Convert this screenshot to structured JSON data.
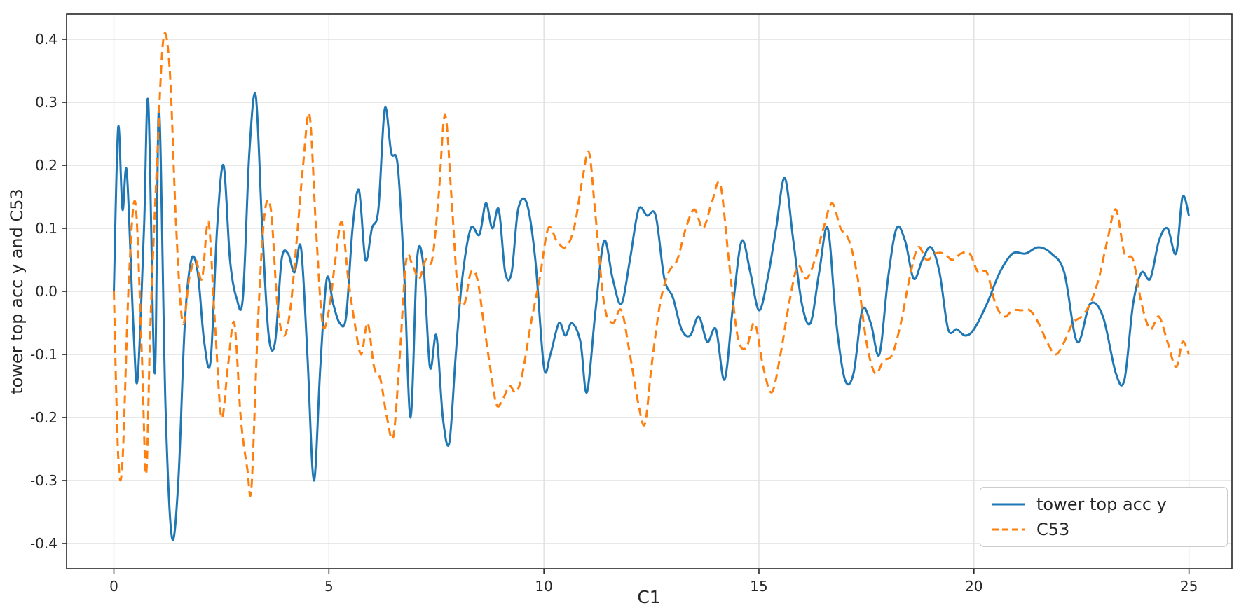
{
  "chart_data": {
    "type": "line",
    "title": "",
    "xlabel": "C1",
    "ylabel": "tower top acc y and C53",
    "xlim": [
      -1.1,
      26.0
    ],
    "ylim": [
      -0.44,
      0.44
    ],
    "x_ticks": [
      0,
      5,
      10,
      15,
      20,
      25
    ],
    "x_tick_labels": [
      "0",
      "5",
      "10",
      "15",
      "20",
      "25"
    ],
    "y_ticks": [
      -0.4,
      -0.3,
      -0.2,
      -0.1,
      0.0,
      0.1,
      0.2,
      0.3,
      0.4
    ],
    "y_tick_labels": [
      "-0.4",
      "-0.3",
      "-0.2",
      "-0.1",
      "0.0",
      "0.1",
      "0.2",
      "0.3",
      "0.4"
    ],
    "grid": true,
    "legend_position": "lower right",
    "series": [
      {
        "name": "tower top acc y",
        "color": "#1f77b4",
        "style": "solid",
        "x": [
          0,
          0.1,
          0.2,
          0.3,
          0.45,
          0.55,
          0.7,
          0.8,
          0.95,
          1.05,
          1.2,
          1.35,
          1.5,
          1.65,
          1.8,
          1.95,
          2.1,
          2.25,
          2.4,
          2.55,
          2.7,
          2.85,
          3.0,
          3.15,
          3.3,
          3.45,
          3.6,
          3.75,
          3.9,
          4.05,
          4.2,
          4.35,
          4.5,
          4.65,
          4.8,
          4.95,
          5.1,
          5.25,
          5.4,
          5.55,
          5.7,
          5.85,
          6.0,
          6.15,
          6.3,
          6.45,
          6.6,
          6.75,
          6.9,
          7.05,
          7.2,
          7.35,
          7.5,
          7.65,
          7.8,
          7.95,
          8.1,
          8.3,
          8.5,
          8.65,
          8.8,
          8.95,
          9.1,
          9.25,
          9.4,
          9.6,
          9.8,
          10.0,
          10.15,
          10.35,
          10.5,
          10.65,
          10.85,
          11.0,
          11.2,
          11.4,
          11.6,
          11.8,
          12.0,
          12.2,
          12.4,
          12.6,
          12.8,
          13.0,
          13.2,
          13.4,
          13.6,
          13.8,
          14.0,
          14.2,
          14.4,
          14.6,
          14.8,
          15.0,
          15.2,
          15.4,
          15.6,
          15.8,
          16.0,
          16.2,
          16.4,
          16.6,
          16.8,
          17.0,
          17.2,
          17.4,
          17.6,
          17.8,
          18.0,
          18.2,
          18.4,
          18.6,
          18.8,
          19.0,
          19.2,
          19.4,
          19.6,
          19.8,
          20.0,
          20.3,
          20.6,
          20.9,
          21.2,
          21.5,
          21.8,
          22.1,
          22.4,
          22.7,
          23.0,
          23.3,
          23.5,
          23.7,
          23.9,
          24.1,
          24.3,
          24.5,
          24.7,
          24.85,
          25.0
        ],
        "y": [
          0.0,
          0.26,
          0.13,
          0.19,
          -0.05,
          -0.14,
          0.1,
          0.3,
          -0.13,
          0.29,
          -0.18,
          -0.39,
          -0.3,
          -0.05,
          0.05,
          0.03,
          -0.08,
          -0.11,
          0.1,
          0.2,
          0.05,
          -0.01,
          -0.01,
          0.22,
          0.31,
          0.1,
          -0.07,
          -0.08,
          0.05,
          0.06,
          0.03,
          0.07,
          -0.1,
          -0.3,
          -0.12,
          0.02,
          -0.02,
          -0.05,
          -0.04,
          0.1,
          0.16,
          0.05,
          0.1,
          0.13,
          0.29,
          0.22,
          0.2,
          0.03,
          -0.2,
          0.05,
          0.04,
          -0.12,
          -0.07,
          -0.2,
          -0.24,
          -0.1,
          0.02,
          0.1,
          0.09,
          0.14,
          0.1,
          0.13,
          0.03,
          0.03,
          0.13,
          0.14,
          0.05,
          -0.12,
          -0.1,
          -0.05,
          -0.07,
          -0.05,
          -0.08,
          -0.16,
          -0.03,
          0.08,
          0.02,
          -0.02,
          0.05,
          0.13,
          0.12,
          0.12,
          0.02,
          -0.01,
          -0.06,
          -0.07,
          -0.04,
          -0.08,
          -0.06,
          -0.14,
          -0.02,
          0.08,
          0.03,
          -0.03,
          0.02,
          0.1,
          0.18,
          0.08,
          -0.02,
          -0.05,
          0.03,
          0.1,
          -0.05,
          -0.14,
          -0.13,
          -0.03,
          -0.05,
          -0.1,
          0.02,
          0.1,
          0.08,
          0.02,
          0.05,
          0.07,
          0.03,
          -0.06,
          -0.06,
          -0.07,
          -0.06,
          -0.02,
          0.03,
          0.06,
          0.06,
          0.07,
          0.06,
          0.03,
          -0.08,
          -0.02,
          -0.04,
          -0.13,
          -0.14,
          -0.02,
          0.03,
          0.02,
          0.08,
          0.1,
          0.06,
          0.15,
          0.12
        ]
      },
      {
        "name": "C53",
        "color": "#ff7f0e",
        "style": "dashed",
        "x": [
          0,
          0.1,
          0.2,
          0.35,
          0.5,
          0.65,
          0.75,
          0.85,
          1.0,
          1.15,
          1.3,
          1.45,
          1.6,
          1.75,
          1.9,
          2.05,
          2.2,
          2.35,
          2.5,
          2.65,
          2.8,
          2.95,
          3.1,
          3.2,
          3.35,
          3.5,
          3.65,
          3.8,
          3.95,
          4.1,
          4.25,
          4.4,
          4.55,
          4.7,
          4.85,
          5.0,
          5.15,
          5.3,
          5.45,
          5.6,
          5.75,
          5.9,
          6.05,
          6.2,
          6.35,
          6.5,
          6.65,
          6.8,
          6.95,
          7.1,
          7.25,
          7.4,
          7.55,
          7.7,
          7.85,
          8.0,
          8.15,
          8.3,
          8.45,
          8.6,
          8.75,
          8.9,
          9.05,
          9.2,
          9.35,
          9.5,
          9.7,
          9.9,
          10.1,
          10.3,
          10.5,
          10.7,
          10.9,
          11.05,
          11.2,
          11.4,
          11.6,
          11.8,
          12.0,
          12.2,
          12.35,
          12.5,
          12.7,
          12.9,
          13.1,
          13.3,
          13.5,
          13.7,
          13.9,
          14.1,
          14.3,
          14.5,
          14.7,
          14.9,
          15.1,
          15.3,
          15.5,
          15.7,
          15.9,
          16.1,
          16.3,
          16.5,
          16.7,
          16.9,
          17.1,
          17.3,
          17.5,
          17.7,
          17.9,
          18.1,
          18.3,
          18.5,
          18.7,
          18.9,
          19.1,
          19.3,
          19.5,
          19.7,
          19.9,
          20.1,
          20.3,
          20.5,
          20.7,
          20.9,
          21.1,
          21.3,
          21.5,
          21.7,
          21.9,
          22.1,
          22.3,
          22.5,
          22.7,
          22.9,
          23.1,
          23.3,
          23.5,
          23.7,
          23.9,
          24.1,
          24.3,
          24.5,
          24.7,
          24.85,
          25.0
        ],
        "y": [
          0.0,
          -0.26,
          -0.27,
          0.02,
          0.14,
          -0.1,
          -0.29,
          -0.05,
          0.2,
          0.4,
          0.35,
          0.1,
          -0.05,
          0.02,
          0.05,
          0.02,
          0.11,
          -0.05,
          -0.2,
          -0.12,
          -0.05,
          -0.2,
          -0.28,
          -0.31,
          -0.05,
          0.12,
          0.13,
          -0.02,
          -0.07,
          -0.03,
          0.08,
          0.2,
          0.28,
          0.1,
          -0.05,
          -0.03,
          0.05,
          0.11,
          0.02,
          -0.05,
          -0.1,
          -0.05,
          -0.12,
          -0.14,
          -0.2,
          -0.23,
          -0.1,
          0.05,
          0.04,
          0.02,
          0.05,
          0.05,
          0.15,
          0.28,
          0.15,
          0.0,
          -0.02,
          0.03,
          0.02,
          -0.05,
          -0.12,
          -0.18,
          -0.17,
          -0.15,
          -0.16,
          -0.13,
          -0.05,
          0.02,
          0.1,
          0.08,
          0.07,
          0.1,
          0.18,
          0.22,
          0.12,
          -0.02,
          -0.05,
          -0.03,
          -0.1,
          -0.18,
          -0.21,
          -0.12,
          -0.02,
          0.03,
          0.05,
          0.1,
          0.13,
          0.1,
          0.14,
          0.17,
          0.05,
          -0.07,
          -0.09,
          -0.05,
          -0.12,
          -0.16,
          -0.1,
          -0.02,
          0.04,
          0.02,
          0.05,
          0.1,
          0.14,
          0.1,
          0.08,
          0.02,
          -0.08,
          -0.13,
          -0.11,
          -0.1,
          -0.05,
          0.02,
          0.07,
          0.05,
          0.06,
          0.06,
          0.05,
          0.06,
          0.06,
          0.03,
          0.03,
          -0.02,
          -0.04,
          -0.03,
          -0.03,
          -0.03,
          -0.05,
          -0.08,
          -0.1,
          -0.08,
          -0.05,
          -0.04,
          -0.02,
          0.02,
          0.08,
          0.13,
          0.06,
          0.05,
          -0.02,
          -0.06,
          -0.04,
          -0.08,
          -0.12,
          -0.08,
          -0.1
        ]
      }
    ]
  }
}
